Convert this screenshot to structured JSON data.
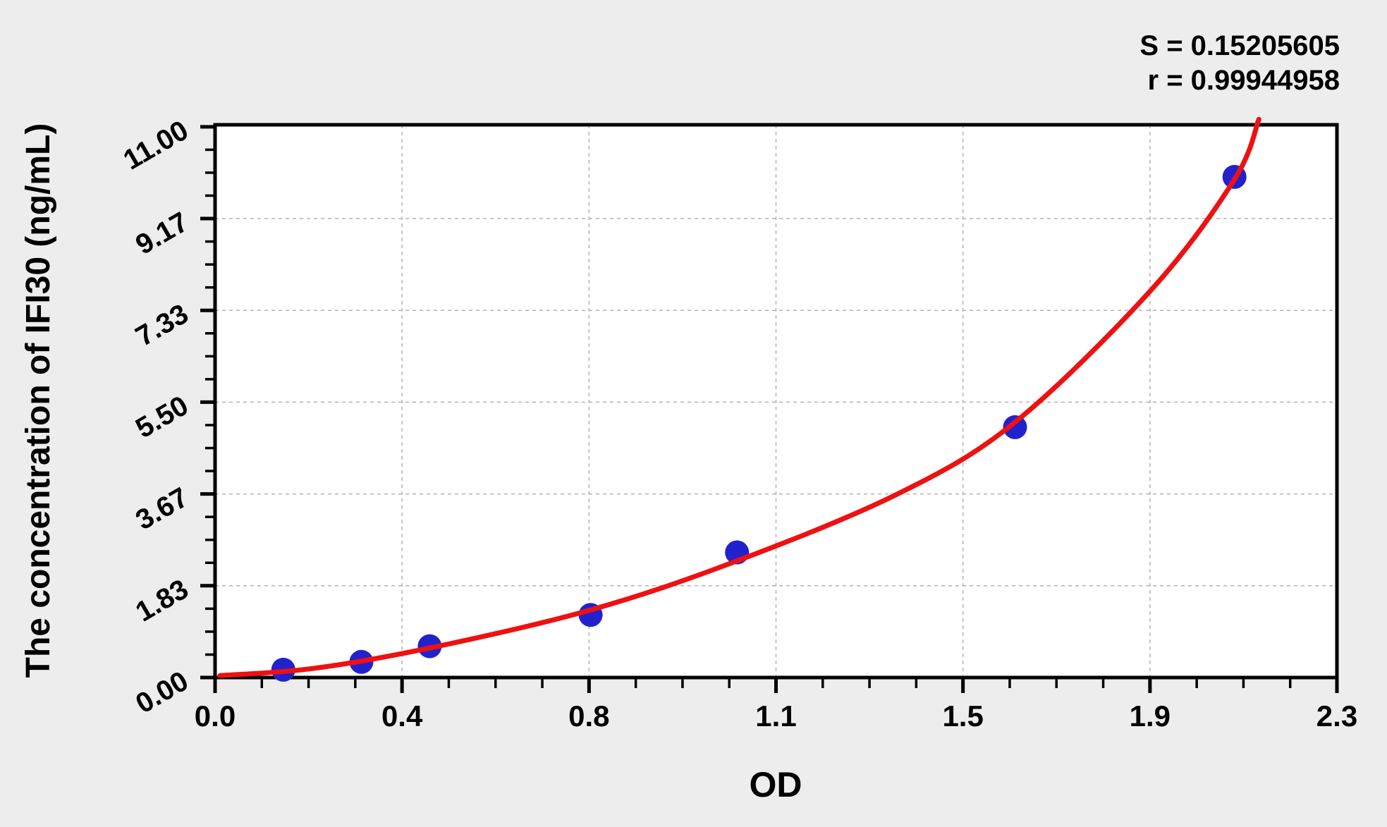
{
  "chart_data": {
    "type": "scatter",
    "title": "",
    "xlabel": "OD",
    "ylabel": "The concentration of IFI30 (ng/mL)",
    "xlim": [
      0,
      2.3
    ],
    "ylim": [
      0,
      11.0
    ],
    "grid": {
      "show": true,
      "style": "dashed",
      "on": "major-ticks"
    },
    "x_tick_values": [
      0,
      0.3833,
      0.7667,
      1.15,
      1.5333,
      1.9167,
      2.3
    ],
    "x_tick_labels": [
      "0.0",
      "0.4",
      "0.8",
      "1.1",
      "1.5",
      "1.9",
      "2.3"
    ],
    "y_tick_values": [
      0,
      1.8333,
      3.6667,
      5.5,
      7.3333,
      9.1667,
      11.0
    ],
    "y_tick_labels": [
      "0.00",
      "1.83",
      "3.67",
      "5.50",
      "7.33",
      "9.17",
      "11.00"
    ],
    "minor_divisions_per_major": 4,
    "stats_display": {
      "s": "S = 0.15205605",
      "r": "r = 0.99944958"
    },
    "stats": {
      "S": 0.15205605,
      "r": 0.99944958
    },
    "series": [
      {
        "name": "standard-points",
        "type": "scatter",
        "color": "#2222cc",
        "marker_radius_px": 17,
        "points": [
          {
            "od": 0.14,
            "conc": 0.156
          },
          {
            "od": 0.3,
            "conc": 0.312
          },
          {
            "od": 0.44,
            "conc": 0.625
          },
          {
            "od": 0.77,
            "conc": 1.25
          },
          {
            "od": 1.07,
            "conc": 2.5
          },
          {
            "od": 1.64,
            "conc": 5.0
          },
          {
            "od": 2.09,
            "conc": 10.0
          }
        ]
      },
      {
        "name": "fitted-curve",
        "type": "line",
        "color": "#ee1111",
        "stroke_width_px": 7,
        "points": [
          {
            "od": 0.01,
            "conc": 0.04
          },
          {
            "od": 0.2,
            "conc": 0.18
          },
          {
            "od": 0.44,
            "conc": 0.59
          },
          {
            "od": 0.77,
            "conc": 1.35
          },
          {
            "od": 1.07,
            "conc": 2.33
          },
          {
            "od": 1.4,
            "conc": 3.67
          },
          {
            "od": 1.64,
            "conc": 5.1
          },
          {
            "od": 1.92,
            "conc": 7.75
          },
          {
            "od": 2.09,
            "conc": 9.95
          },
          {
            "od": 2.14,
            "conc": 11.15
          }
        ]
      }
    ],
    "colors": {
      "background": "#ededed",
      "plot_background": "#ffffff",
      "axis": "#000000",
      "grid": "#b3b3b3",
      "curve": "#ee1111",
      "points": "#2222cc",
      "text": "#000000"
    }
  }
}
